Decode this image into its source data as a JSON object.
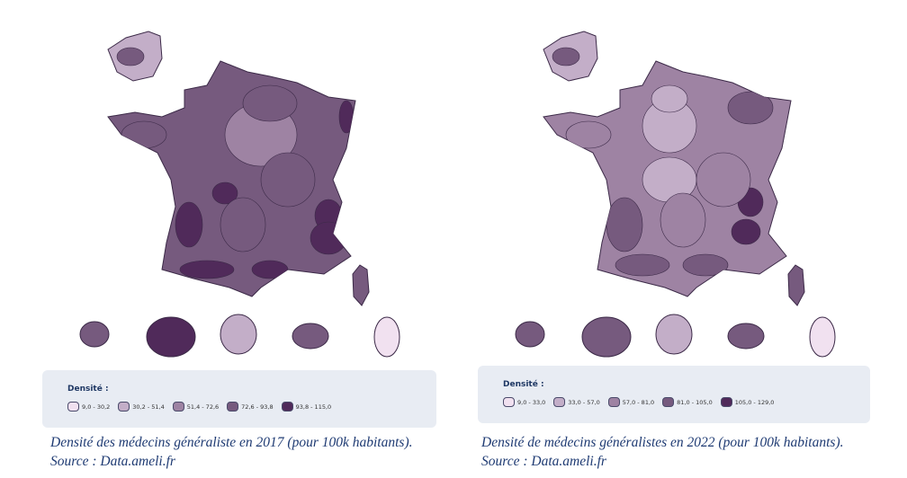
{
  "chart_data": [
    {
      "type": "choropleth map",
      "year": "2017",
      "legend": {
        "title": "Densité :",
        "classes": [
          "9,0 - 30,2",
          "30,2 - 51,4",
          "51,4 - 72,6",
          "72,6 - 93,8",
          "93,8 - 115,0"
        ],
        "colors": [
          "#f1e1f0",
          "#c3aec8",
          "#9e83a3",
          "#765a7e",
          "#502a5a"
        ]
      },
      "overseas": {
        "Martinique": 3,
        "Réunion": 4,
        "Guyane": 1,
        "Guadeloupe": 3,
        "Mayotte": 0
      },
      "caption": "Densité des médecins généraliste en 2017 (pour 100k habitants). Source : Data.ameli.fr"
    },
    {
      "type": "choropleth map",
      "year": "2022",
      "legend": {
        "title": "Densité :",
        "classes": [
          "9,0 - 33,0",
          "33,0 - 57,0",
          "57,0 - 81,0",
          "81,0 - 105,0",
          "105,0 - 129,0"
        ],
        "colors": [
          "#f1e1f0",
          "#c3aec8",
          "#9e83a3",
          "#765a7e",
          "#502a5a"
        ]
      },
      "overseas": {
        "Martinique": 3,
        "Réunion": 3,
        "Guyane": 1,
        "Guadeloupe": 3,
        "Mayotte": 0
      },
      "caption": "Densité de médecins généralistes en 2022 (pour 100k habitants). Source : Data.ameli.fr"
    }
  ]
}
